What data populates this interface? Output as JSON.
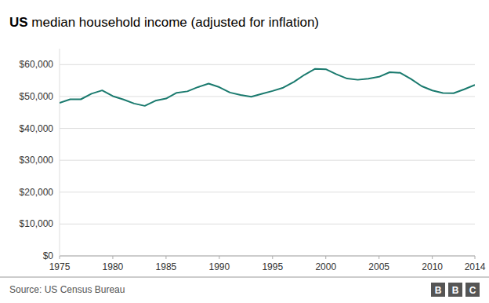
{
  "chart_data": {
    "type": "line",
    "title": "US median household income (adjusted for inflation)",
    "annotations": [
      "Source: US Census Bureau",
      "BBC"
    ],
    "x": [
      1975,
      1976,
      1977,
      1978,
      1979,
      1980,
      1981,
      1982,
      1983,
      1984,
      1985,
      1986,
      1987,
      1988,
      1989,
      1990,
      1991,
      1992,
      1993,
      1994,
      1995,
      1996,
      1997,
      1998,
      1999,
      2000,
      2001,
      2002,
      2003,
      2004,
      2005,
      2006,
      2007,
      2008,
      2009,
      2010,
      2011,
      2012,
      2013,
      2014
    ],
    "values": [
      47970,
      49112,
      49122,
      50876,
      51918,
      50113,
      49044,
      47800,
      47060,
      48664,
      49363,
      51155,
      51614,
      52952,
      54038,
      52923,
      51241,
      50467,
      49920,
      50831,
      51734,
      52770,
      54554,
      56807,
      58665,
      58544,
      56962,
      55617,
      55244,
      55596,
      56181,
      57617,
      57423,
      55478,
      53248,
      51892,
      51100,
      51017,
      52250,
      53657
    ],
    "color": "#1a7a6e",
    "xlim": [
      1975,
      2014
    ],
    "xticks": [
      1975,
      1980,
      1985,
      1990,
      1995,
      2000,
      2005,
      2010,
      2014
    ],
    "ylim": [
      0,
      65000
    ],
    "yticks": [
      {
        "value": 0,
        "label": "$0"
      },
      {
        "value": 10000,
        "label": "$10,000"
      },
      {
        "value": 20000,
        "label": "$20,000"
      },
      {
        "value": 30000,
        "label": "$30,000"
      },
      {
        "value": 40000,
        "label": "$40,000"
      },
      {
        "value": 50000,
        "label": "$50,000"
      },
      {
        "value": 60000,
        "label": "$60,000"
      }
    ],
    "grid": true
  }
}
